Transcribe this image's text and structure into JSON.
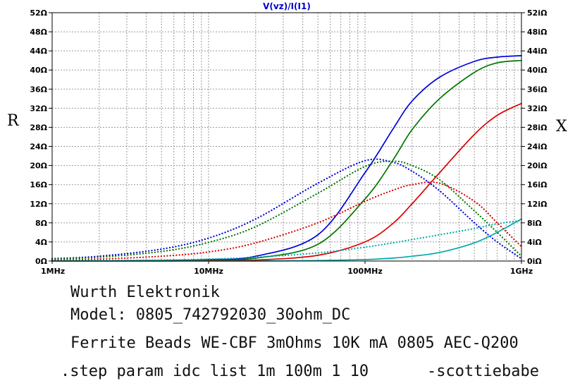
{
  "chart_data": {
    "type": "line",
    "title": "V(vz)/I(I1)",
    "ylabel": "R",
    "y2label": "X",
    "xscale": "log",
    "xlim": [
      1000000,
      1000000000
    ],
    "ylim": [
      0,
      52
    ],
    "y2lim": [
      0,
      52
    ],
    "grid": true,
    "x_ticks": [
      {
        "value": 1000000,
        "label": "1MHz"
      },
      {
        "value": 10000000,
        "label": "10MHz"
      },
      {
        "value": 100000000,
        "label": "100MHz"
      },
      {
        "value": 1000000000,
        "label": "1GHz"
      }
    ],
    "y_ticks": [
      "0Ω",
      "4Ω",
      "8Ω",
      "12Ω",
      "16Ω",
      "20Ω",
      "24Ω",
      "28Ω",
      "32Ω",
      "36Ω",
      "40Ω",
      "44Ω",
      "48Ω",
      "52Ω"
    ],
    "y2_ticks": [
      "0iΩ",
      "4iΩ",
      "8iΩ",
      "12iΩ",
      "16iΩ",
      "20iΩ",
      "24iΩ",
      "28iΩ",
      "32iΩ",
      "36iΩ",
      "40iΩ",
      "44iΩ",
      "48iΩ",
      "52iΩ"
    ],
    "x": [
      1000000,
      2000000,
      5000000,
      10000000,
      20000000,
      50000000,
      100000000,
      150000000,
      200000000,
      300000000,
      500000000,
      700000000,
      1000000000
    ],
    "series": [
      {
        "color": "#0000dd",
        "style": "solid",
        "axis": "left",
        "values": [
          0,
          0,
          0.1,
          0.3,
          1.0,
          5.5,
          18.5,
          27.5,
          33.5,
          38.5,
          41.8,
          42.7,
          43.0
        ]
      },
      {
        "color": "#0000dd",
        "style": "dotted",
        "axis": "right",
        "values": [
          0.5,
          1.0,
          2.5,
          4.8,
          8.8,
          16.3,
          21.0,
          20.7,
          18.8,
          14.7,
          8.0,
          4.0,
          0.5
        ]
      },
      {
        "color": "#007700",
        "style": "solid",
        "axis": "left",
        "values": [
          0,
          0,
          0.1,
          0.2,
          0.6,
          3.5,
          13.0,
          21.0,
          27.5,
          34.0,
          39.5,
          41.5,
          42.0
        ]
      },
      {
        "color": "#007700",
        "style": "dotted",
        "axis": "right",
        "values": [
          0.4,
          0.8,
          2.0,
          3.9,
          7.2,
          14.2,
          19.8,
          20.9,
          20.0,
          17.0,
          10.5,
          6.0,
          1.0
        ]
      },
      {
        "color": "#dd0000",
        "style": "solid",
        "axis": "left",
        "values": [
          0,
          0,
          0,
          0.1,
          0.2,
          1.2,
          4.0,
          7.8,
          12.0,
          18.5,
          26.5,
          30.5,
          33.0
        ]
      },
      {
        "color": "#dd0000",
        "style": "dotted",
        "axis": "right",
        "values": [
          0.2,
          0.4,
          1.0,
          1.9,
          3.8,
          8.0,
          12.5,
          14.8,
          16.0,
          16.3,
          12.5,
          8.0,
          3.0
        ]
      },
      {
        "color": "#00aaaa",
        "style": "solid",
        "axis": "left",
        "values": [
          0,
          0,
          0,
          0,
          0,
          0.1,
          0.3,
          0.6,
          1.0,
          1.8,
          3.8,
          6.0,
          8.8
        ]
      },
      {
        "color": "#00aaaa",
        "style": "dotted",
        "axis": "right",
        "values": [
          0,
          0.1,
          0.2,
          0.4,
          0.8,
          1.7,
          2.9,
          3.8,
          4.5,
          5.5,
          6.8,
          7.8,
          8.5
        ]
      }
    ]
  },
  "notes": {
    "line1": "Wurth Elektronik",
    "line2": "Model: 0805_742792030_30ohm_DC",
    "line3": "Ferrite Beads WE-CBF 3mOhms 10K mA 0805 AEC-Q200",
    "line4": ".step param idc list 1m 100m 1 10",
    "credit": "-scottiebabe"
  }
}
